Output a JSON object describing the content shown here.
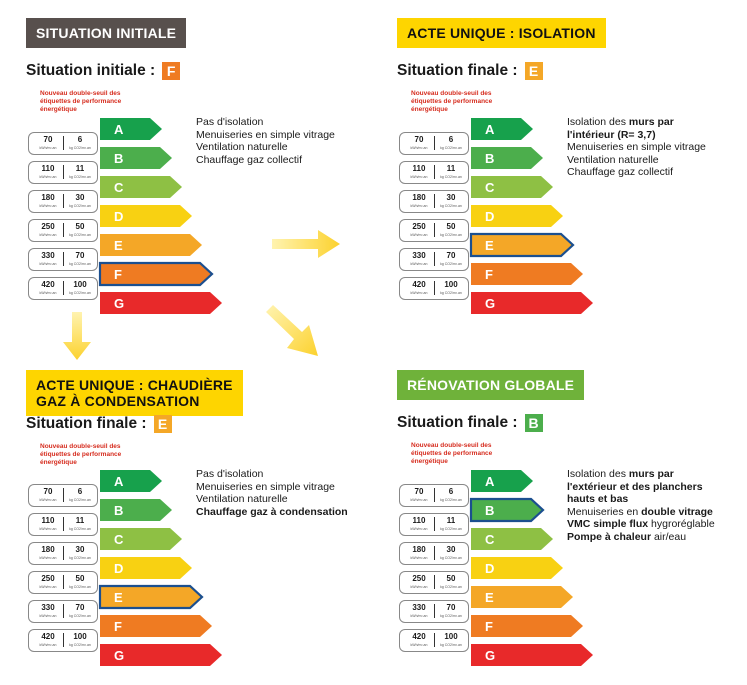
{
  "colors": {
    "A": "#17a14c",
    "B": "#4cae4c",
    "C": "#8ec044",
    "D": "#f8d112",
    "E": "#f4a727",
    "F": "#ef7b22",
    "G": "#e8292a",
    "highlight_border": "#1b4f8f",
    "arrow": "#fcd22e"
  },
  "classes": [
    "A",
    "B",
    "C",
    "D",
    "E",
    "F",
    "G"
  ],
  "note_lines": [
    "Nouveau double-seuil des",
    "étiquettes de performance",
    "énergétique"
  ],
  "thresholds": [
    {
      "energy": "70",
      "co2": "6"
    },
    {
      "energy": "110",
      "co2": "11"
    },
    {
      "energy": "180",
      "co2": "30"
    },
    {
      "energy": "250",
      "co2": "50"
    },
    {
      "energy": "330",
      "co2": "70"
    },
    {
      "energy": "420",
      "co2": "100"
    }
  ],
  "units": {
    "energy": "kWh/m².an",
    "co2": "kg CO2/m².an"
  },
  "panels": [
    {
      "header": "SITUATION INITIALE",
      "header_lines": [
        "SITUATION INITIALE"
      ],
      "header_style": "dark",
      "situation_label": "Situation initiale :",
      "rating": "F",
      "desc": [
        [
          {
            "t": "Pas d'isolation",
            "b": false
          }
        ],
        [
          {
            "t": "Menuiseries en simple vitrage",
            "b": false
          }
        ],
        [
          {
            "t": "Ventilation naturelle",
            "b": false
          }
        ],
        [
          {
            "t": "Chauffage gaz collectif",
            "b": false
          }
        ]
      ]
    },
    {
      "header": "ACTE UNIQUE : ISOLATION",
      "header_lines": [
        "ACTE UNIQUE : ISOLATION"
      ],
      "header_style": "yellow",
      "situation_label": "Situation finale :",
      "rating": "E",
      "desc": [
        [
          {
            "t": "Isolation des ",
            "b": false
          },
          {
            "t": "murs par",
            "b": true
          }
        ],
        [
          {
            "t": "l'intérieur (R= 3,7)",
            "b": true
          }
        ],
        [
          {
            "t": "Menuiseries en simple vitrage",
            "b": false
          }
        ],
        [
          {
            "t": "Ventilation naturelle",
            "b": false
          }
        ],
        [
          {
            "t": "Chauffage gaz collectif",
            "b": false
          }
        ]
      ]
    },
    {
      "header": "ACTE UNIQUE : CHAUDIÈRE GAZ À CONDENSATION",
      "header_lines": [
        "ACTE UNIQUE : CHAUDIÈRE",
        "GAZ À CONDENSATION"
      ],
      "header_style": "yellow",
      "situation_label": "Situation finale :",
      "rating": "E",
      "desc": [
        [
          {
            "t": "Pas d'isolation",
            "b": false
          }
        ],
        [
          {
            "t": "Menuiseries en simple vitrage",
            "b": false
          }
        ],
        [
          {
            "t": "Ventilation naturelle",
            "b": false
          }
        ],
        [
          {
            "t": "Chauffage gaz à condensation",
            "b": true
          }
        ]
      ]
    },
    {
      "header": "RÉNOVATION GLOBALE",
      "header_lines": [
        "RÉNOVATION GLOBALE"
      ],
      "header_style": "green",
      "situation_label": "Situation finale :",
      "rating": "B",
      "desc": [
        [
          {
            "t": "Isolation des ",
            "b": false
          },
          {
            "t": "murs par",
            "b": true
          }
        ],
        [
          {
            "t": "l'extérieur et des planchers",
            "b": true
          }
        ],
        [
          {
            "t": "hauts et bas",
            "b": true
          }
        ],
        [
          {
            "t": "Menuiseries en ",
            "b": false
          },
          {
            "t": "double vitrage",
            "b": true
          }
        ],
        [
          {
            "t": "VMC simple flux",
            "b": true
          },
          {
            "t": " hygroréglable",
            "b": false
          }
        ],
        [
          {
            "t": "Pompe à chaleur",
            "b": true
          },
          {
            "t": " air/eau",
            "b": false
          }
        ]
      ]
    }
  ]
}
